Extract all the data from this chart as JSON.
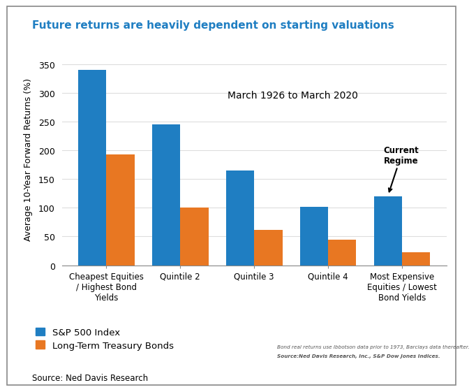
{
  "title": "Future returns are heavily dependent on starting valuations",
  "title_color": "#1F7EC2",
  "ylabel": "Average 10-Year Forward Returns (%)",
  "date_label": "March 1926 to March 2020",
  "categories": [
    "Cheapest Equities\n/ Highest Bond\nYields",
    "Quintile 2",
    "Quintile 3",
    "Quintile 4",
    "Most Expensive\nEquities / Lowest\nBond Yields"
  ],
  "sp500_values": [
    340,
    245,
    165,
    102,
    120
  ],
  "bond_values": [
    193,
    100,
    62,
    45,
    22
  ],
  "sp500_color": "#1F7EC2",
  "bond_color": "#E87722",
  "ylim": [
    0,
    370
  ],
  "yticks": [
    0,
    50,
    100,
    150,
    200,
    250,
    300,
    350
  ],
  "legend_sp500": "S&P 500 Index",
  "legend_bonds": "Long-Term Treasury Bonds",
  "annotation_text": "Current\nRegime",
  "footnote_line1": "Bond real returns use Ibbotson data prior to 1973, Barclays data thereafter.",
  "footnote_line2": "Source:Ned Davis Research, Inc., S&P Dow Jones Indices.",
  "source_text": "Source: Ned Davis Research",
  "background_color": "#FFFFFF",
  "grid_color": "#DDDDDD"
}
